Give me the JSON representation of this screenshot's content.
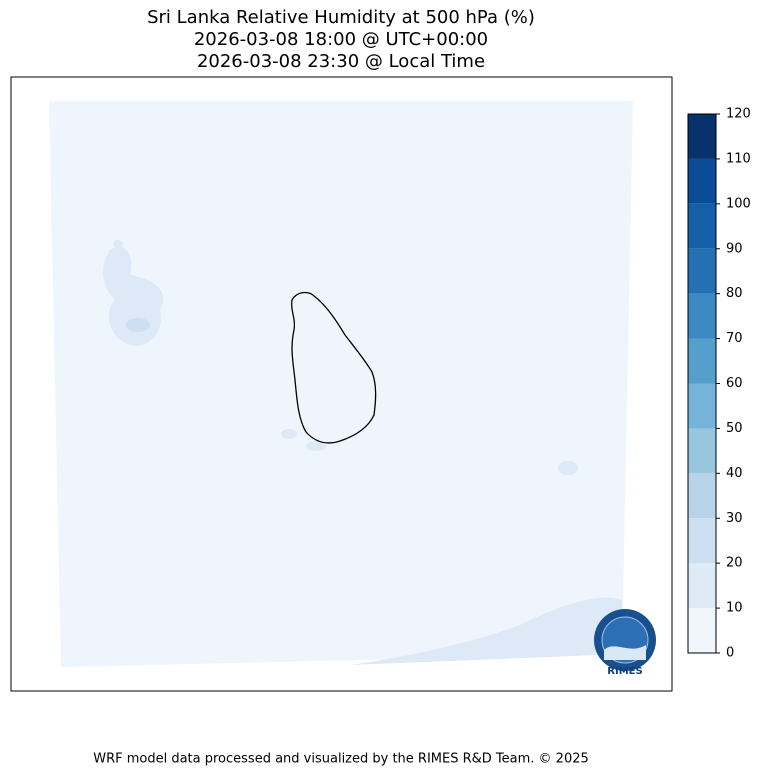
{
  "header": {
    "title": [
      "Sri Lanka Relative Humidity at 500 hPa (%)",
      "2026-03-08 18:00 @ UTC+00:00",
      "2026-03-08 23:30 @ Local Time"
    ]
  },
  "colorbar": {
    "ticks": [
      0,
      10,
      20,
      30,
      40,
      50,
      60,
      70,
      80,
      90,
      100,
      110,
      120
    ],
    "colors": [
      "#eff6fc",
      "#deebf7",
      "#cde0f1",
      "#b7d4ea",
      "#98c6df",
      "#76b3d8",
      "#559fcd",
      "#3c88c1",
      "#2570b3",
      "#1460a8",
      "#0a4c97",
      "#08326d"
    ]
  },
  "logo": {
    "label": "RIMES"
  },
  "footer": {
    "credit": "WRF model data processed and visualized by the RIMES R&D Team. © 2025"
  }
}
